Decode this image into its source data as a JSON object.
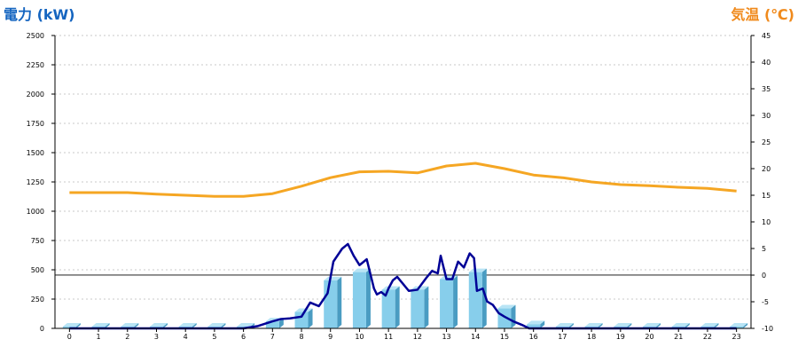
{
  "chart_data": {
    "type": "bar",
    "left_axis_title": "電力 (kW)",
    "right_axis_title": "気温 (℃)",
    "colors": {
      "left_title": "#1565c0",
      "right_title": "#f08a1c",
      "bar_front": "#87ceeb",
      "bar_side": "#4a9cc2",
      "bar_top": "#b8e4f5",
      "power_line": "#000096",
      "temp_line": "#f5a623",
      "grid": "#c8c8c8"
    },
    "x_ticks": [
      "0",
      "1",
      "2",
      "3",
      "4",
      "5",
      "6",
      "7",
      "8",
      "9",
      "10",
      "11",
      "12",
      "13",
      "14",
      "15",
      "16",
      "17",
      "18",
      "19",
      "20",
      "21",
      "22",
      "23"
    ],
    "y_left": {
      "min": 0,
      "max": 2500,
      "ticks": [
        "0",
        "250",
        "500",
        "750",
        "1000",
        "1250",
        "1500",
        "1750",
        "2000",
        "2250",
        "2500"
      ]
    },
    "y_right": {
      "min": -10,
      "max": 45,
      "ticks": [
        "-10",
        "-5",
        "0",
        "5",
        "10",
        "15",
        "20",
        "25",
        "30",
        "35",
        "40",
        "45"
      ]
    },
    "reference_line_left_value": 455,
    "grid": true,
    "bars": [
      {
        "name": "hourly-power",
        "values": [
          15,
          15,
          15,
          15,
          15,
          15,
          15,
          60,
          140,
          410,
          480,
          330,
          330,
          420,
          480,
          170,
          35,
          15,
          15,
          15,
          15,
          15,
          15,
          15
        ]
      }
    ],
    "series": [
      {
        "x": [
          0,
          1,
          2,
          3,
          4,
          5,
          6,
          6.5,
          7,
          7.3,
          7.6,
          8,
          8.3,
          8.6,
          8.9,
          9.1,
          9.4,
          9.6,
          9.8,
          10,
          10.25,
          10.5,
          10.6,
          10.75,
          10.9,
          11,
          11.15,
          11.3,
          11.5,
          11.7,
          12,
          12.3,
          12.5,
          12.7,
          12.8,
          13,
          13.2,
          13.4,
          13.6,
          13.8,
          13.95,
          14.05,
          14.25,
          14.4,
          14.6,
          14.8,
          15,
          15.3,
          15.6,
          15.85,
          16,
          17,
          18,
          19,
          20,
          21,
          22,
          23
        ],
        "values": [
          0,
          0,
          0,
          0,
          0,
          0,
          0,
          20,
          60,
          80,
          85,
          100,
          220,
          190,
          300,
          570,
          680,
          720,
          620,
          540,
          590,
          340,
          290,
          310,
          280,
          340,
          410,
          440,
          380,
          320,
          330,
          430,
          490,
          470,
          620,
          420,
          420,
          570,
          520,
          640,
          600,
          320,
          340,
          230,
          200,
          130,
          100,
          60,
          30,
          0,
          0,
          0,
          0,
          0,
          0,
          0,
          0,
          0
        ]
      },
      {
        "x": [
          0,
          1,
          2,
          3,
          4,
          5,
          6,
          7,
          8,
          9,
          10,
          11,
          12,
          13,
          14,
          15,
          16,
          17,
          18,
          19,
          20,
          21,
          22,
          23
        ],
        "values": [
          15.5,
          15.5,
          15.5,
          15.2,
          15,
          14.8,
          14.8,
          15.3,
          16.7,
          18.3,
          19.4,
          19.5,
          19.2,
          20.5,
          21,
          20,
          18.8,
          18.3,
          17.5,
          17,
          16.8,
          16.5,
          16.3,
          15.8
        ]
      }
    ]
  }
}
